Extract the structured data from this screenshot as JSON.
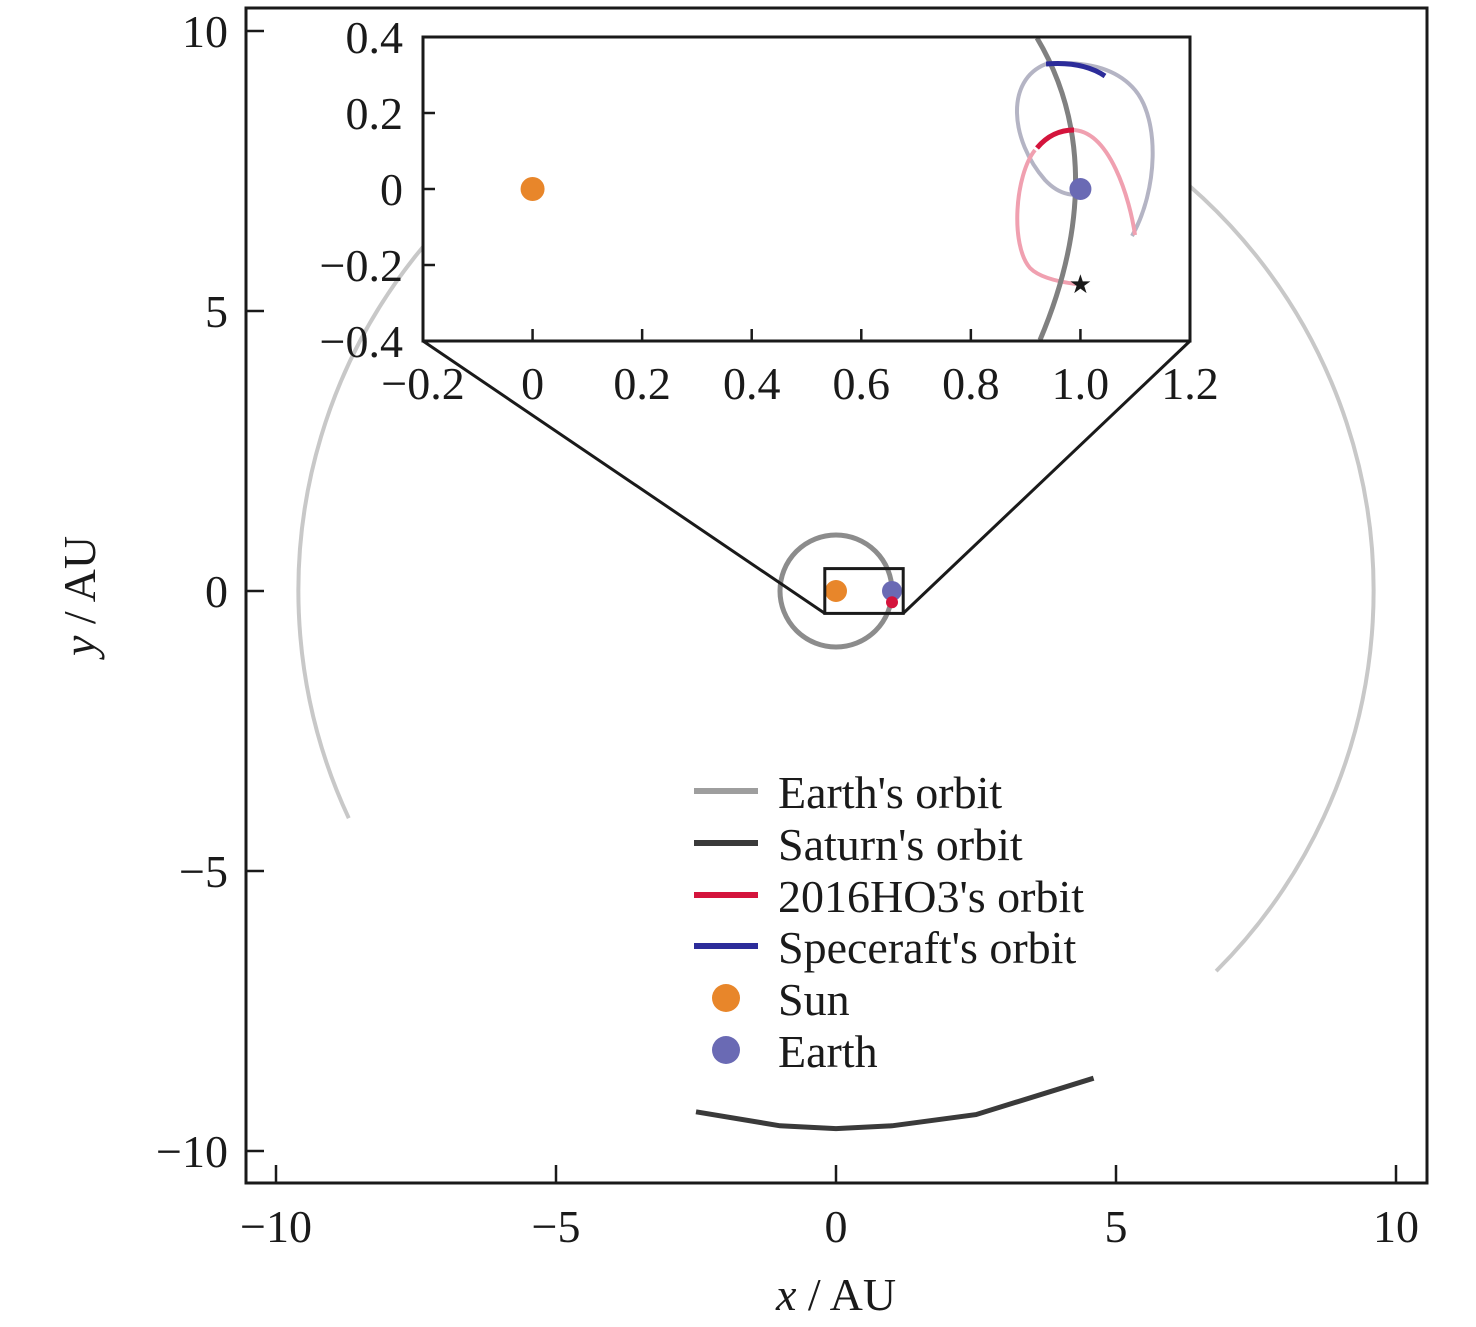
{
  "chart_data": {
    "type": "line",
    "xlabel_var": "x",
    "xlabel_unit": " / AU",
    "ylabel_var": "y",
    "ylabel_unit": " / AU",
    "xlim": [
      -10.5,
      10.5
    ],
    "ylim": [
      -10.5,
      10.5
    ],
    "xticks": [
      -10,
      -5,
      0,
      5,
      10
    ],
    "xtick_labels": [
      "−10",
      "−5",
      "0",
      "5",
      "10"
    ],
    "yticks": [
      -10,
      -5,
      0,
      5,
      10
    ],
    "ytick_labels": [
      "−10",
      "−5",
      "0",
      "5",
      "10"
    ],
    "grid": false,
    "legend_position": "lower-right",
    "series": [
      {
        "name": "Earth's orbit",
        "color": "#9e9e9e",
        "note_x": [
          0,
          1,
          0,
          -1,
          0
        ],
        "y": [
          -1,
          0,
          1,
          0,
          -1
        ]
      },
      {
        "name": "Saturn's orbit",
        "color": "#3a3a3a",
        "x": [
          -2.5,
          -1,
          0,
          1,
          2.5,
          4.6
        ],
        "y": [
          -9.3,
          -9.55,
          -9.6,
          -9.55,
          -9.35,
          -8.7
        ]
      },
      {
        "name": "2016HO3's orbit",
        "color": "#d4143c"
      },
      {
        "name": "Speceraft's orbit",
        "color": "#2c2c9a"
      },
      {
        "name": "Sun",
        "color": "#e8862a",
        "marker": "circle",
        "x": [
          0
        ],
        "y": [
          0
        ]
      },
      {
        "name": "Earth",
        "color": "#6a6ab4",
        "marker": "circle",
        "x": [
          1
        ],
        "y": [
          0
        ]
      }
    ],
    "saturn_region_track": {
      "color": "#c8c8c8",
      "radius": 9.6,
      "arc_deg": [
        -45,
        205
      ]
    },
    "inset": {
      "xlim": [
        -0.2,
        1.2
      ],
      "ylim": [
        -0.4,
        0.4
      ],
      "xticks": [
        -0.2,
        0,
        0.2,
        0.4,
        0.6,
        0.8,
        1.0,
        1.2
      ],
      "xtick_labels": [
        "−0.2",
        "0",
        "0.2",
        "0.4",
        "0.6",
        "0.8",
        "1.0",
        "1.2"
      ],
      "yticks": [
        -0.4,
        -0.2,
        0,
        0.2,
        0.4
      ],
      "ytick_labels": [
        "−0.4",
        "−0.2",
        "0",
        "0.2",
        "0.4"
      ],
      "zoom_box_data": {
        "x": [
          -0.2,
          1.2
        ],
        "y": [
          -0.4,
          0.4
        ]
      },
      "sun": {
        "x": 0,
        "y": 0
      },
      "earth": {
        "x": 1.0,
        "y": 0
      },
      "asteroid_star": {
        "x": 1.0,
        "y": -0.25
      }
    }
  }
}
